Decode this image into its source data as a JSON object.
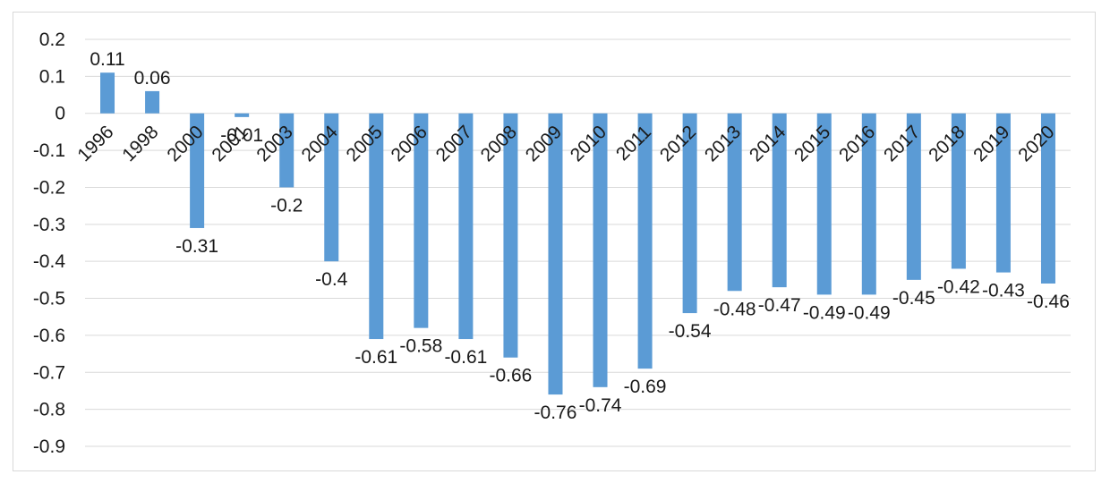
{
  "chart_data": {
    "type": "bar",
    "title": "",
    "xlabel": "",
    "ylabel": "",
    "categories": [
      "1996",
      "1998",
      "2000",
      "2001",
      "2003",
      "2004",
      "2005",
      "2006",
      "2007",
      "2008",
      "2009",
      "2010",
      "2011",
      "2012",
      "2013",
      "2014",
      "2015",
      "2016",
      "2017",
      "2018",
      "2019",
      "2020"
    ],
    "values": [
      0.11,
      0.06,
      -0.31,
      -0.01,
      -0.2,
      -0.4,
      -0.61,
      -0.58,
      -0.61,
      -0.66,
      -0.76,
      -0.74,
      -0.69,
      -0.54,
      -0.48,
      -0.47,
      -0.49,
      -0.49,
      -0.45,
      -0.42,
      -0.43,
      -0.46
    ],
    "data_labels": [
      "0.11",
      "0.06",
      "-0.31",
      "-0.01",
      "-0.2",
      "-0.4",
      "-0.61",
      "-0.58",
      "-0.61",
      "-0.66",
      "-0.76",
      "-0.74",
      "-0.69",
      "-0.54",
      "-0.48",
      "-0.47",
      "-0.49",
      "-0.49",
      "-0.45",
      "-0.42",
      "-0.43",
      "-0.46"
    ],
    "ylim": [
      -0.9,
      0.2
    ],
    "yticks": [
      "0.2",
      "0.1",
      "0",
      "-0.1",
      "-0.2",
      "-0.3",
      "-0.4",
      "-0.5",
      "-0.6",
      "-0.7",
      "-0.8",
      "-0.9"
    ],
    "ytick_values": [
      0.2,
      0.1,
      0,
      -0.1,
      -0.2,
      -0.3,
      -0.4,
      -0.5,
      -0.6,
      -0.7,
      -0.8,
      -0.9
    ],
    "grid": true,
    "legend": "none",
    "colors": {
      "bar": "#5b9bd5",
      "grid": "#d9d9d9",
      "text": "#1a1a1a"
    }
  }
}
